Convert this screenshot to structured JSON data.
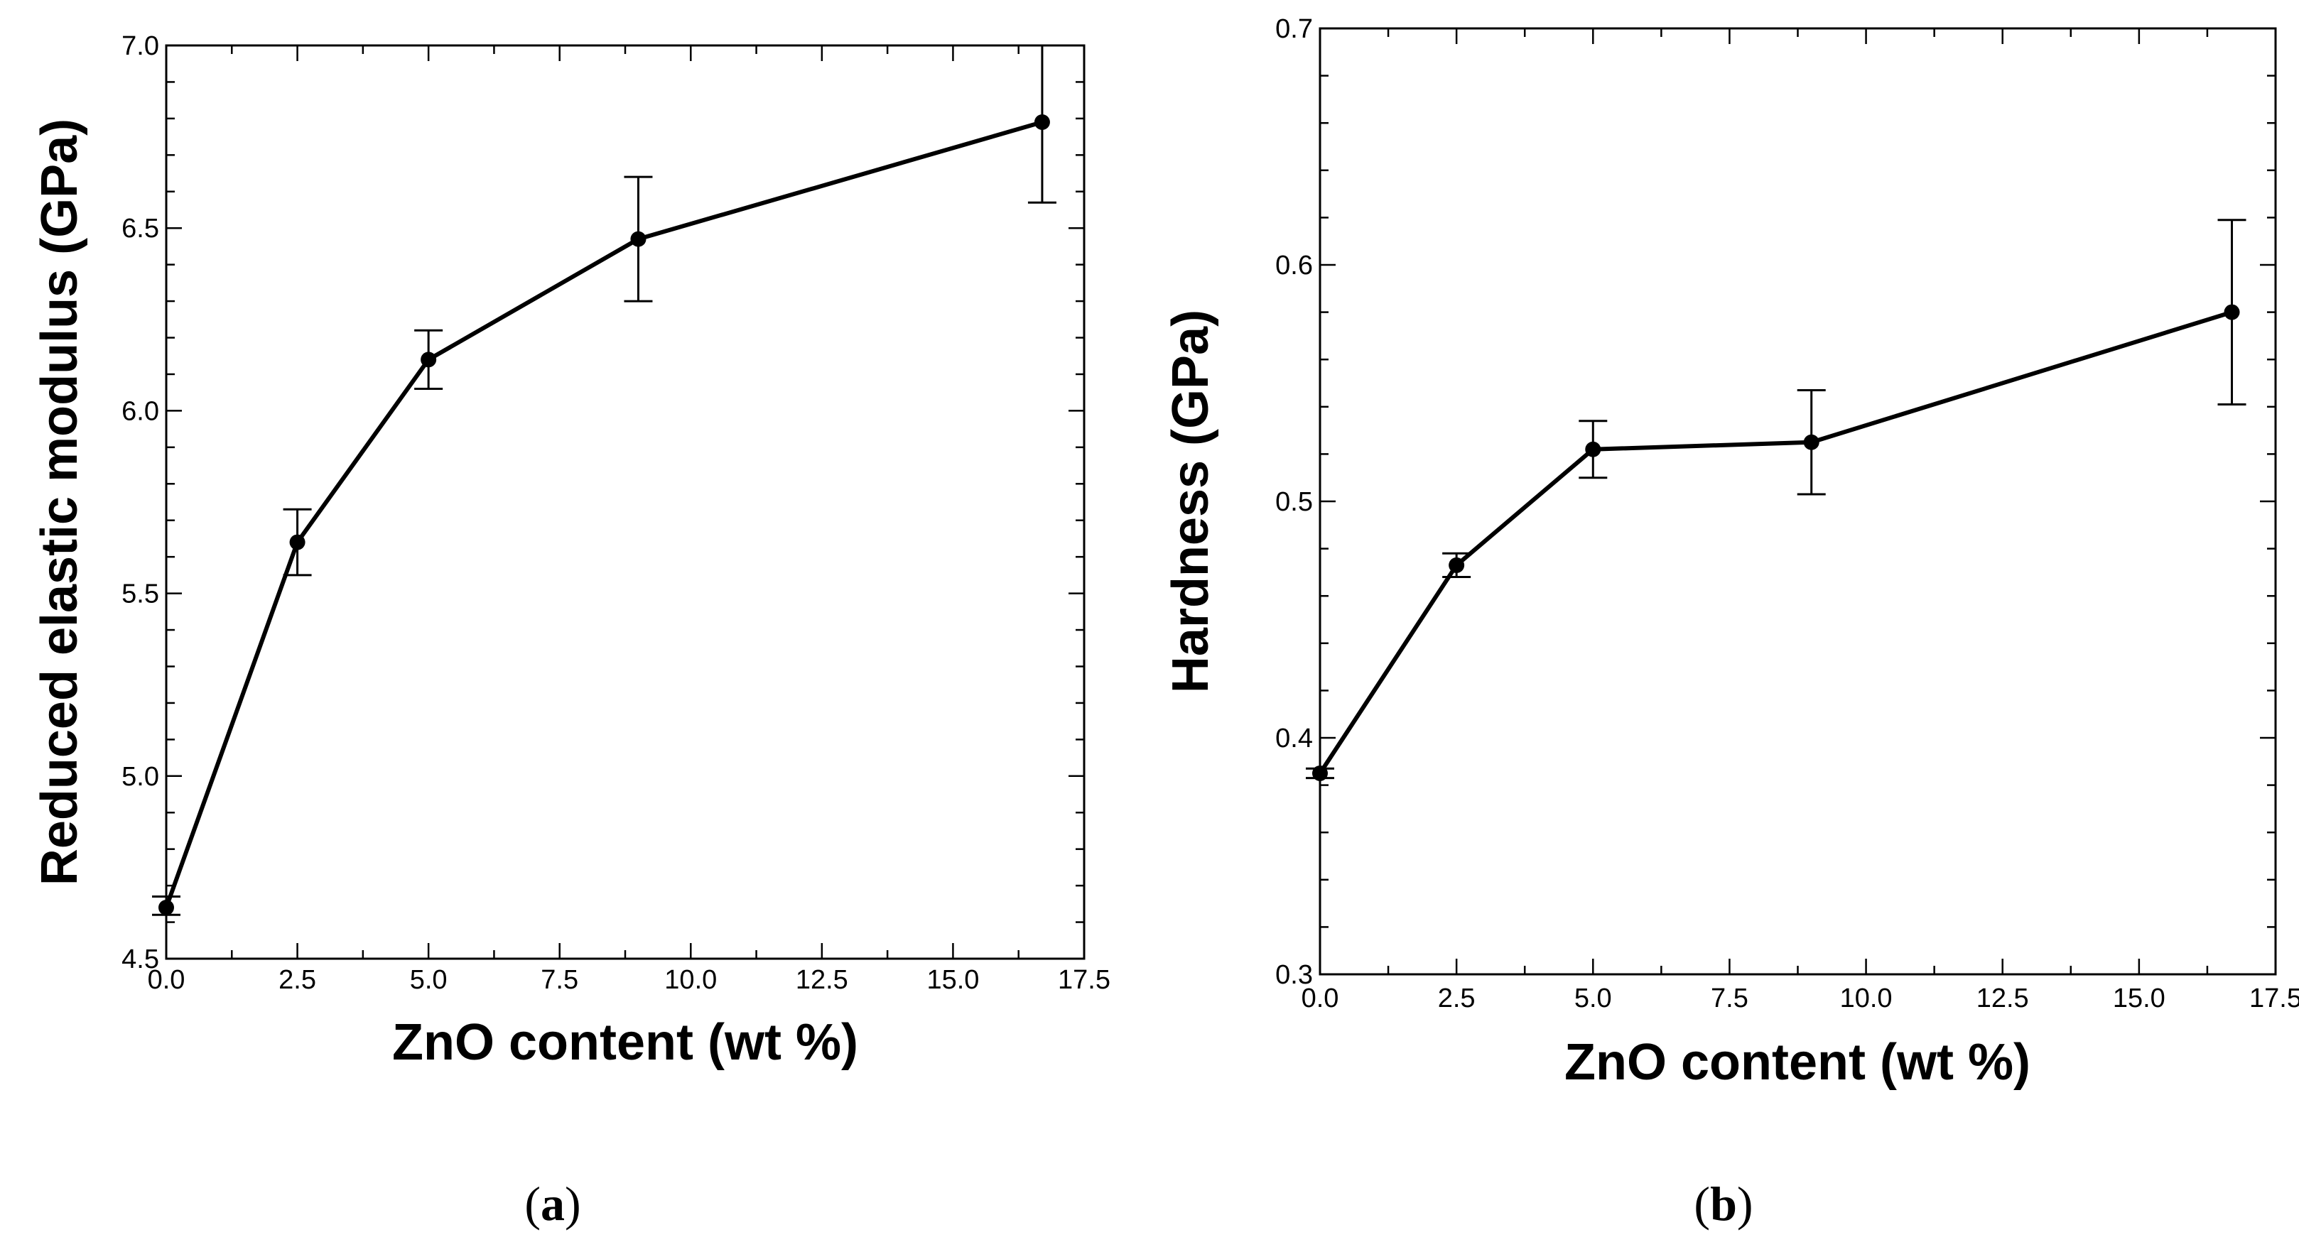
{
  "chart_data": [
    {
      "type": "line",
      "panel_label": "a",
      "title": "",
      "xlabel": "ZnO content (wt %)",
      "ylabel": "Reduced elastic modulus (GPa)",
      "xlim": [
        0,
        17.5
      ],
      "ylim": [
        4.5,
        7.0
      ],
      "x_ticks": [
        0,
        2.5,
        5,
        7.5,
        10,
        12.5,
        15,
        17.5
      ],
      "x_tick_labels": [
        "0.0",
        "2.5",
        "5.0",
        "7.5",
        "10.0",
        "12.5",
        "15.0",
        "17.5"
      ],
      "y_ticks": [
        4.5,
        5.0,
        5.5,
        6.0,
        6.5,
        7.0
      ],
      "y_tick_labels": [
        "4.5",
        "5.0",
        "5.5",
        "6.0",
        "6.5",
        "7.0"
      ],
      "y_minor_step": 0.1,
      "x_minor_step": 1.25,
      "grid": false,
      "series": [
        {
          "name": "Reduced elastic modulus",
          "x": [
            0,
            2.5,
            5,
            9,
            16.7
          ],
          "y": [
            4.64,
            5.64,
            6.14,
            6.47,
            6.79
          ],
          "err_low": [
            4.62,
            5.55,
            6.06,
            6.3,
            6.57
          ],
          "err_high": [
            4.67,
            5.73,
            6.22,
            6.64,
            7.01
          ]
        }
      ]
    },
    {
      "type": "line",
      "panel_label": "b",
      "title": "",
      "xlabel": "ZnO content (wt %)",
      "ylabel": "Hardness (GPa)",
      "xlim": [
        0,
        17.5
      ],
      "ylim": [
        0.3,
        0.7
      ],
      "x_ticks": [
        0,
        2.5,
        5,
        7.5,
        10,
        12.5,
        15,
        17.5
      ],
      "x_tick_labels": [
        "0.0",
        "2.5",
        "5.0",
        "7.5",
        "10.0",
        "12.5",
        "15.0",
        "17.5"
      ],
      "y_ticks": [
        0.3,
        0.4,
        0.5,
        0.6,
        0.7
      ],
      "y_tick_labels": [
        "0.3",
        "0.4",
        "0.5",
        "0.6",
        "0.7"
      ],
      "y_minor_step": 0.02,
      "x_minor_step": 1.25,
      "grid": false,
      "series": [
        {
          "name": "Hardness",
          "x": [
            0,
            2.5,
            5,
            9,
            16.7
          ],
          "y": [
            0.385,
            0.473,
            0.522,
            0.525,
            0.58
          ],
          "err_low": [
            0.383,
            0.468,
            0.51,
            0.503,
            0.541
          ],
          "err_high": [
            0.387,
            0.478,
            0.534,
            0.547,
            0.619
          ]
        }
      ]
    }
  ],
  "captions": [
    {
      "open": "(",
      "letter": "a",
      "close": ")"
    },
    {
      "open": "(",
      "letter": "b",
      "close": ")"
    }
  ],
  "colors": {
    "line": "#000000",
    "axis": "#000000",
    "background": "#ffffff"
  }
}
